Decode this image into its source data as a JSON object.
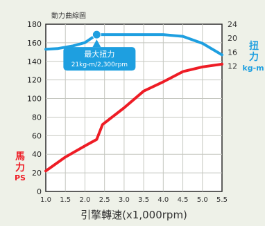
{
  "chart_data": {
    "type": "line",
    "title": "動力曲線圖",
    "xlabel": "引擎轉速(x1,000rpm)",
    "x_ticks": [
      1.0,
      1.5,
      2.0,
      2.5,
      3.0,
      3.5,
      4.0,
      4.5,
      5.0,
      5.5
    ],
    "x_tick_labels": [
      "1.0",
      "1.5",
      "2.0",
      "2.5",
      "3.0",
      "3.5",
      "4.0",
      "4.5",
      "5.0",
      "5.5"
    ],
    "xlim": [
      1.0,
      5.5
    ],
    "y_left": {
      "label_lines": [
        "馬",
        "力",
        "PS"
      ],
      "ticks": [
        0,
        20,
        40,
        60,
        80,
        100,
        120,
        140,
        160,
        180
      ],
      "ylim": [
        0,
        180
      ],
      "color": "#ee1c25"
    },
    "y_right": {
      "label_lines": [
        "扭",
        "力",
        "kg-m"
      ],
      "ticks": [
        12,
        16,
        20,
        24
      ],
      "ylim": [
        -24,
        24
      ],
      "color": "#1e9fe0"
    },
    "series": [
      {
        "axis": "left",
        "color": "#ee1c25",
        "x": [
          1.0,
          1.5,
          2.0,
          2.3,
          2.45,
          3.0,
          3.5,
          4.0,
          4.5,
          5.0,
          5.5
        ],
        "values": [
          22,
          37,
          49,
          56,
          72,
          90,
          108,
          118,
          129,
          134,
          137
        ]
      },
      {
        "axis": "right",
        "color": "#1e9fe0",
        "x": [
          1.0,
          1.3,
          1.7,
          2.0,
          2.3,
          2.6,
          3.0,
          3.5,
          4.0,
          4.5,
          5.0,
          5.5
        ],
        "values": [
          16.8,
          17.0,
          17.8,
          18.7,
          21.0,
          21.0,
          21.0,
          21.0,
          21.0,
          20.5,
          18.5,
          15.2
        ]
      }
    ],
    "peak_marker": {
      "x": 2.3,
      "y": 21.0,
      "axis": "right",
      "label_title": "最大扭力",
      "label_value": "21kg-m/2,300rpm"
    },
    "grid": true
  }
}
